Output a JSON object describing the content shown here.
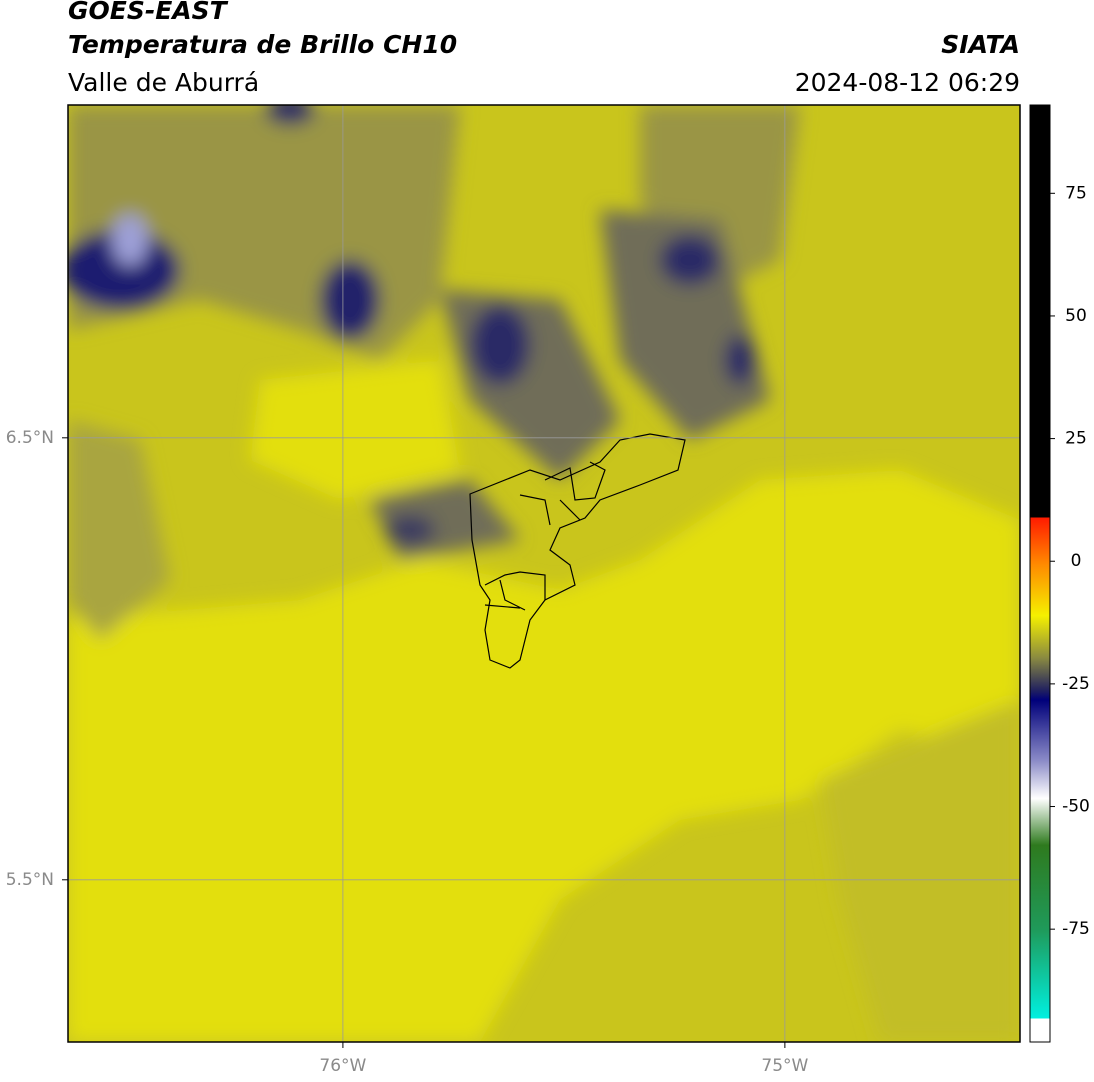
{
  "header": {
    "title": "GOES-EAST",
    "subtitle": "Temperatura de Brillo CH10",
    "source": "SIATA",
    "region": "Valle de Aburrá",
    "timestamp": "2024-08-12 06:29"
  },
  "map": {
    "xlim": [
      -76.622,
      -74.468
    ],
    "ylim": [
      5.133,
      7.253
    ],
    "xticks": [
      {
        "value": -76,
        "label": "76°W"
      },
      {
        "value": -75,
        "label": "75°W"
      }
    ],
    "yticks": [
      {
        "value": 6.5,
        "label": "6.5°N"
      },
      {
        "value": 5.5,
        "label": "5.5°N"
      }
    ],
    "grid": true
  },
  "colorbar": {
    "lim": [
      -98,
      93
    ],
    "ticks": [
      75,
      50,
      25,
      0,
      -25,
      -50,
      -75
    ]
  }
}
